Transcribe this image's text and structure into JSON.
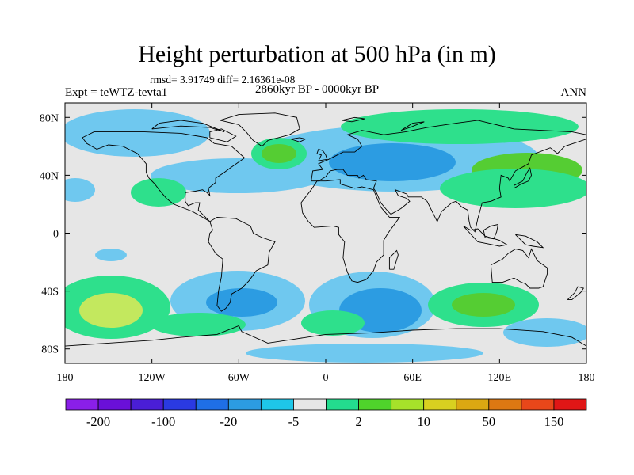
{
  "title": "Height perturbation at 500 hPa (in m)",
  "stats": "rmsd= 3.91749  diff= 2.16361e-08",
  "expt_label": "Expt = teWTZ-tevta1",
  "period_label": "2860kyr BP - 0000kyr BP",
  "season_label": "ANN",
  "map": {
    "lon_ticks": [
      "180",
      "120W",
      "60W",
      "0",
      "60E",
      "120E",
      "180"
    ],
    "lat_ticks": [
      "80N",
      "40N",
      "0",
      "40S",
      "80S"
    ],
    "lat_tick_values": [
      80,
      40,
      0,
      -40,
      -80
    ],
    "lon_range": [
      -180,
      180
    ],
    "lat_range": [
      -90,
      90
    ],
    "background": "#e6e6e6",
    "palette": {
      "light_blue": "#6fc8ef",
      "mid_blue": "#2c9ce2",
      "blue": "#1f6fe6",
      "light_green": "#2ee08c",
      "green": "#55cd33",
      "yellow_green": "#c3e85e"
    }
  },
  "colorbar": {
    "colors": [
      "#8a1fe8",
      "#6a10d8",
      "#4a1ed6",
      "#2a3ae2",
      "#1f6fe6",
      "#2c9ce2",
      "#1ec6e8",
      "#e6e6e6",
      "#23dc8e",
      "#4fd32b",
      "#a6e22a",
      "#d8d020",
      "#dba812",
      "#dd7812",
      "#e8471a",
      "#e01616"
    ],
    "labels": [
      "-200",
      "-100",
      "-20",
      "-5",
      "2",
      "10",
      "50",
      "150"
    ]
  }
}
